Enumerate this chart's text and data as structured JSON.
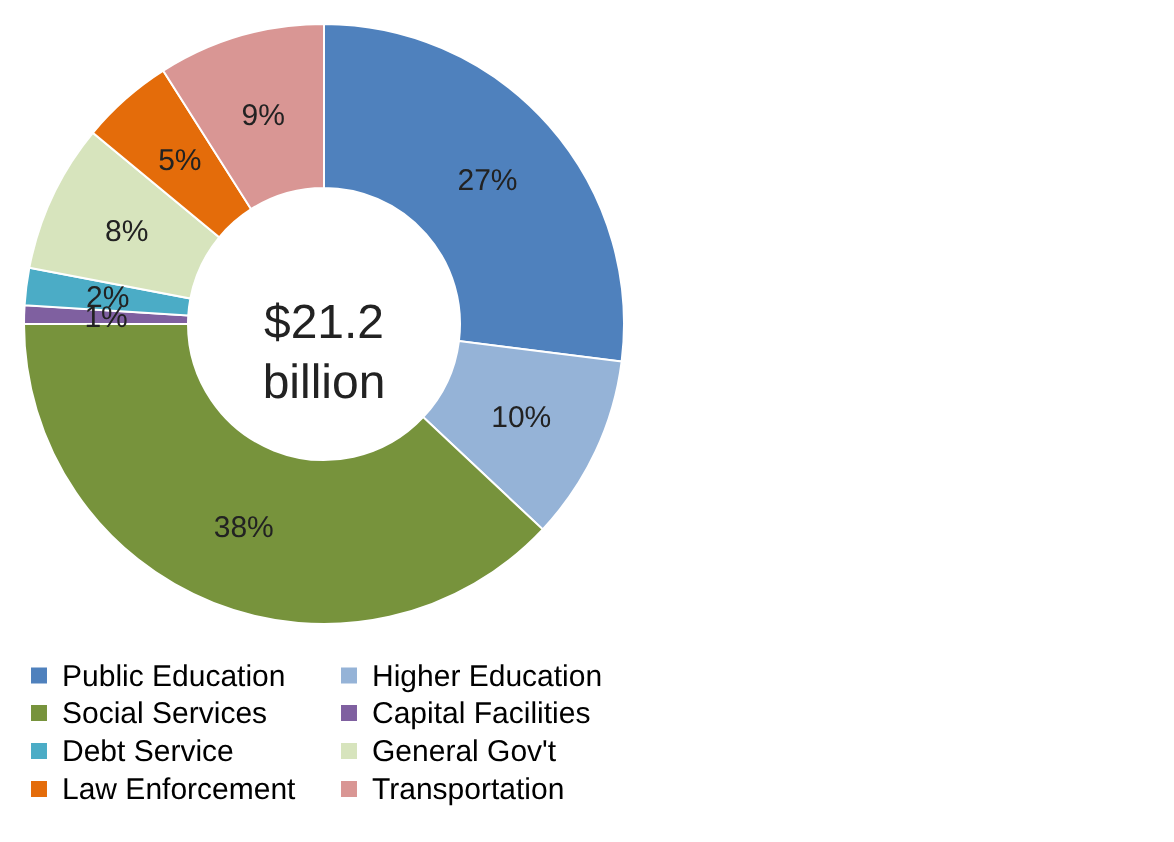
{
  "chart_data": {
    "type": "donut",
    "categories": [
      "Public Education",
      "Higher Education",
      "Social Services",
      "Capital Facilities",
      "Debt Service",
      "General Gov't",
      "Law Enforcement",
      "Transportation"
    ],
    "values": [
      27,
      10,
      38,
      1,
      2,
      8,
      5,
      9
    ],
    "value_labels": [
      "27%",
      "10%",
      "38%",
      "1%",
      "2%",
      "8%",
      "5%",
      "9%"
    ],
    "colors": [
      "#4f81bd",
      "#95b3d7",
      "#77933c",
      "#7f60a0",
      "#4bacc6",
      "#d7e4bd",
      "#e46c0a",
      "#d99694"
    ],
    "annotations": [
      "$21.2 billion"
    ],
    "legend": "bottom"
  }
}
